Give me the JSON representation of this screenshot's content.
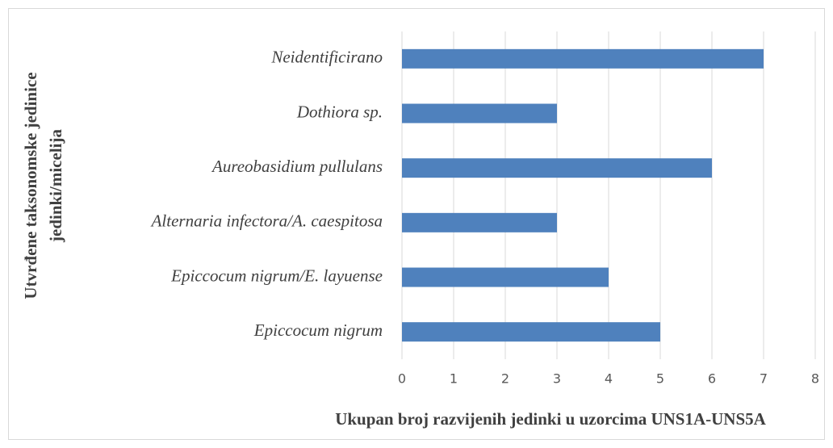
{
  "chart_data": {
    "type": "barh",
    "categories": [
      "Neidentificirano",
      "Dothiora sp.",
      "Aureobasidium pullulans",
      "Alternaria infectora/A. caespitosa",
      "Epiccocum nigrum/E. layuense",
      "Epiccocum nigrum"
    ],
    "values": [
      7,
      3,
      6,
      3,
      4,
      5
    ],
    "color": "#4f81bd",
    "xlim": [
      0,
      8
    ],
    "xticks": [
      0,
      1,
      2,
      3,
      4,
      5,
      6,
      7,
      8
    ],
    "grid": true,
    "xlabel": "Ukupan broj razvijenih jedinki u uzorcima UNS1A-UNS5A",
    "ylabel": [
      "Utvrđene taksonomske jedinice",
      "jedinki/micelija"
    ]
  }
}
